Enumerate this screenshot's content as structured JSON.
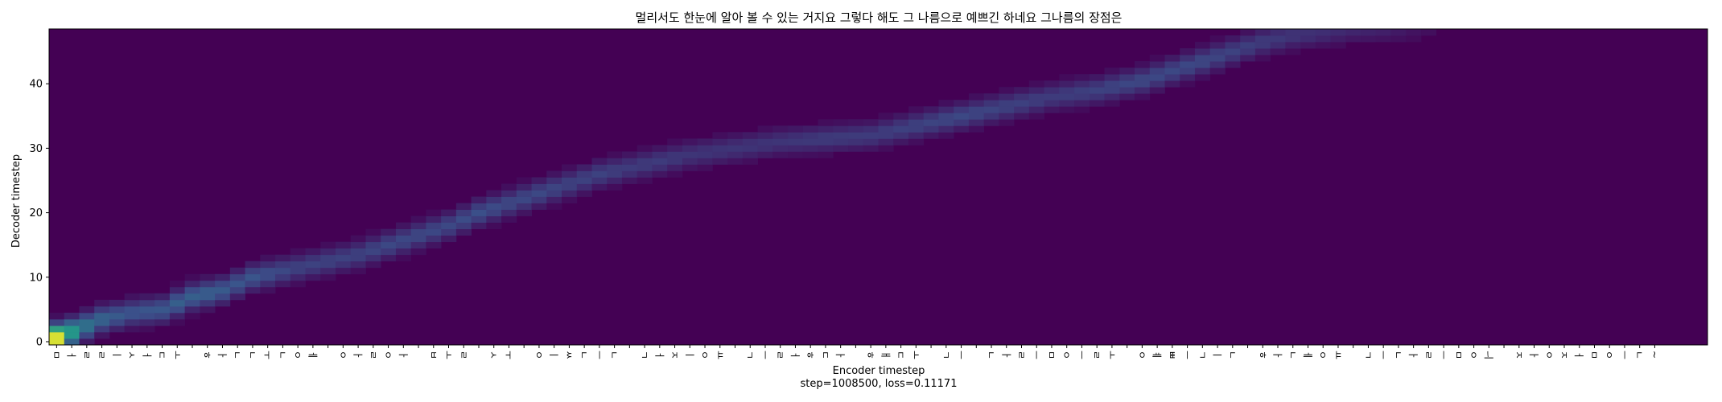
{
  "chart_data": {
    "type": "heatmap",
    "title": "멀리서도 한눈에 알아 볼 수 있는 거지요 그렇다 해도 그 나름으로 예쁘긴 하네요 그나름의 장점은",
    "xlabel": "Encoder timestep",
    "ylabel": "Decoder timestep",
    "footer": "step=1008500, loss=0.11171",
    "colormap": "viridis",
    "colorscale": [
      "#440154",
      "#3b528b",
      "#21918c",
      "#5ec962",
      "#fde725"
    ],
    "n_encoder": 110,
    "n_decoder": 49,
    "ylim": [
      0,
      49
    ],
    "yticks": [
      0,
      10,
      20,
      30,
      40
    ],
    "ytick_labels": [
      "0",
      "10",
      "20",
      "30",
      "40"
    ],
    "x_tick_labels": [
      "ㅁ",
      "ㅓ",
      "ㄹ",
      "ㄹ",
      "ㅣ",
      "ㅅ",
      "ㅓ",
      "ㄷ",
      "ㅗ",
      " ",
      "ㅎ",
      "ㅏ",
      "ㄴ",
      "ㄴ",
      "ㅜ",
      "ㄴ",
      "ㅇ",
      "ㅔ",
      " ",
      "ㅇ",
      "ㅏ",
      "ㄹ",
      "ㅇ",
      "ㅏ",
      " ",
      "ㅂ",
      "ㅗ",
      "ㄹ",
      " ",
      "ㅅ",
      "ㅜ",
      " ",
      "ㅇ",
      "ㅣ",
      "ㅆ",
      "ㄴ",
      "ㅡ",
      "ㄴ",
      " ",
      "ㄱ",
      "ㅓ",
      "ㅈ",
      "ㅣ",
      "ㅇ",
      "ㅛ",
      " ",
      "ㄱ",
      "ㅡ",
      "ㄹ",
      "ㅓ",
      "ㅎ",
      "ㄷ",
      "ㅏ",
      " ",
      "ㅎ",
      "ㅐ",
      "ㄷ",
      "ㅗ",
      " ",
      "ㄱ",
      "ㅡ",
      " ",
      "ㄴ",
      "ㅏ",
      "ㄹ",
      "ㅡ",
      "ㅁ",
      "ㅇ",
      "ㅡ",
      "ㄹ",
      "ㅗ",
      " ",
      "ㅇ",
      "ㅖ",
      "ㅃ",
      "ㅡ",
      "ㄱ",
      "ㅣ",
      "ㄴ",
      " ",
      "ㅎ",
      "ㅏ",
      "ㄴ",
      "ㅔ",
      "ㅇ",
      "ㅛ",
      " ",
      "ㄱ",
      "ㅡ",
      "ㄴ",
      "ㅏ",
      "ㄹ",
      "ㅡ",
      "ㅁ",
      "ㅇ",
      "ㅢ",
      " ",
      "ㅈ",
      "ㅏ",
      "ㅇ",
      "ㅈ",
      "ㅓ",
      "ㅁ",
      "ㅇ",
      "ㅡ",
      "ㄴ",
      "~"
    ],
    "alignment_path": [
      [
        0,
        0.5,
        1.0
      ],
      [
        1,
        1.5,
        0.55
      ],
      [
        2,
        2.5,
        0.38
      ],
      [
        3,
        3.5,
        0.32
      ],
      [
        4,
        4.0,
        0.28
      ],
      [
        5,
        4.5,
        0.26
      ],
      [
        7,
        5.0,
        0.27
      ],
      [
        8,
        6.0,
        0.3
      ],
      [
        9,
        7.0,
        0.3
      ],
      [
        10,
        7.5,
        0.3
      ],
      [
        11,
        8.0,
        0.28
      ],
      [
        12,
        9.0,
        0.26
      ],
      [
        13,
        10.0,
        0.26
      ],
      [
        14,
        10.5,
        0.24
      ],
      [
        15,
        11.0,
        0.22
      ],
      [
        16,
        11.5,
        0.2
      ],
      [
        17,
        12.0,
        0.2
      ],
      [
        18,
        12.5,
        0.2
      ],
      [
        19,
        13.0,
        0.2
      ],
      [
        20,
        13.5,
        0.2
      ],
      [
        22,
        15.0,
        0.22
      ],
      [
        24,
        16.5,
        0.22
      ],
      [
        26,
        18.0,
        0.22
      ],
      [
        28,
        20.0,
        0.24
      ],
      [
        30,
        21.5,
        0.22
      ],
      [
        32,
        23.0,
        0.22
      ],
      [
        34,
        24.5,
        0.2
      ],
      [
        36,
        26.0,
        0.2
      ],
      [
        38,
        27.0,
        0.18
      ],
      [
        40,
        28.0,
        0.18
      ],
      [
        42,
        29.0,
        0.16
      ],
      [
        45,
        30.0,
        0.16
      ],
      [
        48,
        31.0,
        0.16
      ],
      [
        51,
        31.5,
        0.18
      ],
      [
        54,
        32.0,
        0.18
      ],
      [
        57,
        33.5,
        0.2
      ],
      [
        60,
        35.0,
        0.22
      ],
      [
        63,
        36.5,
        0.2
      ],
      [
        66,
        38.0,
        0.18
      ],
      [
        69,
        39.0,
        0.2
      ],
      [
        72,
        40.5,
        0.22
      ],
      [
        74,
        42.0,
        0.22
      ],
      [
        76,
        43.5,
        0.22
      ],
      [
        78,
        45.0,
        0.2
      ],
      [
        80,
        46.5,
        0.18
      ],
      [
        82,
        47.5,
        0.16
      ],
      [
        84,
        48.0,
        0.14
      ],
      [
        86,
        48.5,
        0.12
      ],
      [
        88,
        48.5,
        0.1
      ],
      [
        90,
        48.5,
        0.06
      ],
      [
        92,
        48.5,
        0.03
      ]
    ]
  }
}
